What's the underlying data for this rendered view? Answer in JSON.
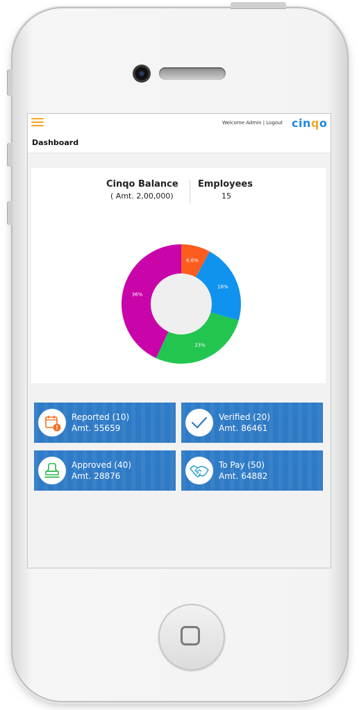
{
  "header": {
    "welcome_text": "Welcome Admin",
    "separator": "|",
    "logout_label": "Logout",
    "logo_part1": "cin",
    "logo_part2": "q",
    "logo_part3": "o"
  },
  "page": {
    "title": "Dashboard"
  },
  "summary": {
    "balance_label": "Cinqo Balance",
    "balance_amount": "( Amt. 2,00,000)",
    "employees_label": "Employees",
    "employees_count": "15"
  },
  "chart_data": {
    "type": "pie",
    "style": "donut",
    "slices": [
      {
        "label": "6.6%",
        "value": 6.6,
        "color": "#fd5c1f"
      },
      {
        "label": "18%",
        "value": 18,
        "color": "#0f93ef"
      },
      {
        "label": "23%",
        "value": 23,
        "color": "#22c550"
      },
      {
        "label": "36%",
        "value": 36,
        "color": "#c905a9"
      }
    ],
    "hole_color": "#efefef"
  },
  "tiles": [
    {
      "title": "Reported (10)",
      "amount": "Amt. 55659",
      "icon": "calendar-alert-icon",
      "icon_color": "#f37021"
    },
    {
      "title": "Verified (20)",
      "amount": "Amt. 86461",
      "icon": "checkmark-icon",
      "icon_color": "#2e7bc8"
    },
    {
      "title": "Approved (40)",
      "amount": "Amt. 28876",
      "icon": "stamp-icon",
      "icon_color": "#2eb34a"
    },
    {
      "title": "To Pay (50)",
      "amount": "Amt. 64882",
      "icon": "handshake-icon",
      "icon_color": "#2e9fc8"
    }
  ],
  "colors": {
    "accent_orange": "#f5a623",
    "tile_blue": "#2e7bc8",
    "logo_blue": "#1e88e5"
  }
}
